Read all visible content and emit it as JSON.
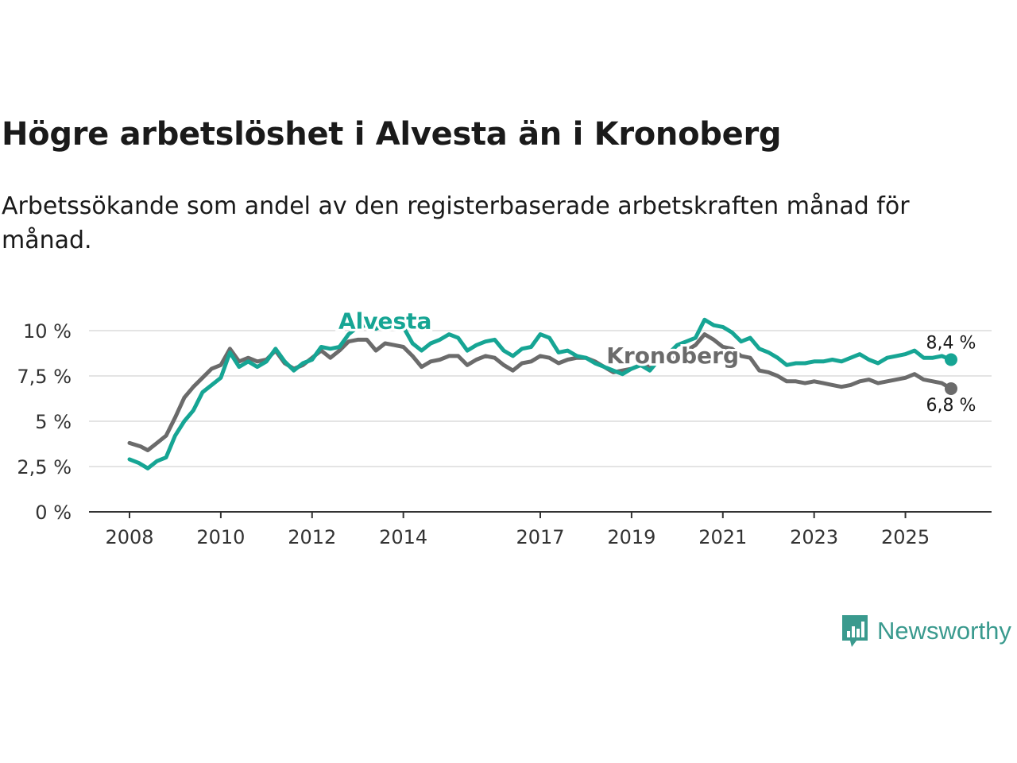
{
  "title": "Högre arbetslöshet i Alvesta än i Kronoberg",
  "subtitle": "Arbetssökande som andel av den registerbaserade arbetskraften månad för månad.",
  "logo": {
    "text": "Newsworthy",
    "icon": "newsworthy-bar-chart-icon",
    "color": "#3a9a8e"
  },
  "chart_data": {
    "type": "line",
    "title": "Högre arbetslöshet i Alvesta än i Kronoberg",
    "xlabel": "",
    "ylabel": "",
    "xlim": [
      2008,
      2026.2
    ],
    "ylim": [
      0,
      10
    ],
    "y_ticks": [
      {
        "value": 0,
        "label": "0 %"
      },
      {
        "value": 2.5,
        "label": "2,5 %"
      },
      {
        "value": 5,
        "label": "5 %"
      },
      {
        "value": 7.5,
        "label": "7,5 %"
      },
      {
        "value": 10,
        "label": "10 %"
      }
    ],
    "x_ticks": [
      {
        "value": 2008,
        "label": "2008"
      },
      {
        "value": 2010,
        "label": "2010"
      },
      {
        "value": 2012,
        "label": "2012"
      },
      {
        "value": 2014,
        "label": "2014"
      },
      {
        "value": 2017,
        "label": "2017"
      },
      {
        "value": 2019,
        "label": "2019"
      },
      {
        "value": 2021,
        "label": "2021"
      },
      {
        "value": 2023,
        "label": "2023"
      },
      {
        "value": 2025,
        "label": "2025"
      }
    ],
    "grid": true,
    "series": [
      {
        "name": "Kronoberg",
        "color": "#6b6b6b",
        "end_label": "6,8 %",
        "points": [
          [
            2008.0,
            3.8
          ],
          [
            2008.25,
            3.6
          ],
          [
            2008.4,
            3.4
          ],
          [
            2008.6,
            3.8
          ],
          [
            2008.8,
            4.2
          ],
          [
            2009.0,
            5.2
          ],
          [
            2009.2,
            6.3
          ],
          [
            2009.4,
            6.9
          ],
          [
            2009.6,
            7.4
          ],
          [
            2009.8,
            7.9
          ],
          [
            2010.0,
            8.1
          ],
          [
            2010.2,
            9.0
          ],
          [
            2010.4,
            8.3
          ],
          [
            2010.6,
            8.5
          ],
          [
            2010.8,
            8.3
          ],
          [
            2011.0,
            8.4
          ],
          [
            2011.2,
            8.9
          ],
          [
            2011.4,
            8.2
          ],
          [
            2011.6,
            7.9
          ],
          [
            2011.8,
            8.1
          ],
          [
            2012.0,
            8.5
          ],
          [
            2012.2,
            8.9
          ],
          [
            2012.4,
            8.5
          ],
          [
            2012.6,
            8.9
          ],
          [
            2012.8,
            9.4
          ],
          [
            2013.0,
            9.5
          ],
          [
            2013.2,
            9.5
          ],
          [
            2013.4,
            8.9
          ],
          [
            2013.6,
            9.3
          ],
          [
            2013.8,
            9.2
          ],
          [
            2014.0,
            9.1
          ],
          [
            2014.2,
            8.6
          ],
          [
            2014.4,
            8.0
          ],
          [
            2014.6,
            8.3
          ],
          [
            2014.8,
            8.4
          ],
          [
            2015.0,
            8.6
          ],
          [
            2015.2,
            8.6
          ],
          [
            2015.4,
            8.1
          ],
          [
            2015.6,
            8.4
          ],
          [
            2015.8,
            8.6
          ],
          [
            2016.0,
            8.5
          ],
          [
            2016.2,
            8.1
          ],
          [
            2016.4,
            7.8
          ],
          [
            2016.6,
            8.2
          ],
          [
            2016.8,
            8.3
          ],
          [
            2017.0,
            8.6
          ],
          [
            2017.2,
            8.5
          ],
          [
            2017.4,
            8.2
          ],
          [
            2017.6,
            8.4
          ],
          [
            2017.8,
            8.5
          ],
          [
            2018.0,
            8.5
          ],
          [
            2018.2,
            8.3
          ],
          [
            2018.4,
            8.0
          ],
          [
            2018.6,
            7.7
          ],
          [
            2018.8,
            7.8
          ],
          [
            2019.0,
            7.9
          ],
          [
            2019.2,
            8.1
          ],
          [
            2019.4,
            8.0
          ],
          [
            2019.6,
            8.3
          ],
          [
            2019.8,
            8.5
          ],
          [
            2020.0,
            8.6
          ],
          [
            2020.2,
            8.9
          ],
          [
            2020.4,
            9.2
          ],
          [
            2020.6,
            9.8
          ],
          [
            2020.8,
            9.5
          ],
          [
            2021.0,
            9.1
          ],
          [
            2021.2,
            9.0
          ],
          [
            2021.4,
            8.6
          ],
          [
            2021.6,
            8.5
          ],
          [
            2021.8,
            7.8
          ],
          [
            2022.0,
            7.7
          ],
          [
            2022.2,
            7.5
          ],
          [
            2022.4,
            7.2
          ],
          [
            2022.6,
            7.2
          ],
          [
            2022.8,
            7.1
          ],
          [
            2023.0,
            7.2
          ],
          [
            2023.2,
            7.1
          ],
          [
            2023.4,
            7.0
          ],
          [
            2023.6,
            6.9
          ],
          [
            2023.8,
            7.0
          ],
          [
            2024.0,
            7.2
          ],
          [
            2024.2,
            7.3
          ],
          [
            2024.4,
            7.1
          ],
          [
            2024.6,
            7.2
          ],
          [
            2024.8,
            7.3
          ],
          [
            2025.0,
            7.4
          ],
          [
            2025.2,
            7.6
          ],
          [
            2025.4,
            7.3
          ],
          [
            2025.6,
            7.2
          ],
          [
            2025.8,
            7.1
          ],
          [
            2026.0,
            6.8
          ]
        ]
      },
      {
        "name": "Alvesta",
        "color": "#16a594",
        "end_label": "8,4 %",
        "points": [
          [
            2008.0,
            2.9
          ],
          [
            2008.2,
            2.7
          ],
          [
            2008.4,
            2.4
          ],
          [
            2008.6,
            2.8
          ],
          [
            2008.8,
            3.0
          ],
          [
            2009.0,
            4.2
          ],
          [
            2009.2,
            5.0
          ],
          [
            2009.4,
            5.6
          ],
          [
            2009.6,
            6.6
          ],
          [
            2009.8,
            7.0
          ],
          [
            2010.0,
            7.4
          ],
          [
            2010.2,
            8.8
          ],
          [
            2010.4,
            8.0
          ],
          [
            2010.6,
            8.3
          ],
          [
            2010.8,
            8.0
          ],
          [
            2011.0,
            8.3
          ],
          [
            2011.2,
            9.0
          ],
          [
            2011.4,
            8.3
          ],
          [
            2011.6,
            7.8
          ],
          [
            2011.8,
            8.2
          ],
          [
            2012.0,
            8.4
          ],
          [
            2012.2,
            9.1
          ],
          [
            2012.4,
            9.0
          ],
          [
            2012.6,
            9.1
          ],
          [
            2012.8,
            9.8
          ],
          [
            2013.0,
            10.2
          ],
          [
            2013.2,
            10.3
          ],
          [
            2013.4,
            10.1
          ],
          [
            2013.6,
            10.4
          ],
          [
            2013.8,
            10.3
          ],
          [
            2014.0,
            10.2
          ],
          [
            2014.2,
            9.3
          ],
          [
            2014.4,
            8.9
          ],
          [
            2014.6,
            9.3
          ],
          [
            2014.8,
            9.5
          ],
          [
            2015.0,
            9.8
          ],
          [
            2015.2,
            9.6
          ],
          [
            2015.4,
            8.9
          ],
          [
            2015.6,
            9.2
          ],
          [
            2015.8,
            9.4
          ],
          [
            2016.0,
            9.5
          ],
          [
            2016.2,
            8.9
          ],
          [
            2016.4,
            8.6
          ],
          [
            2016.6,
            9.0
          ],
          [
            2016.8,
            9.1
          ],
          [
            2017.0,
            9.8
          ],
          [
            2017.2,
            9.6
          ],
          [
            2017.4,
            8.8
          ],
          [
            2017.6,
            8.9
          ],
          [
            2017.8,
            8.6
          ],
          [
            2018.0,
            8.5
          ],
          [
            2018.2,
            8.2
          ],
          [
            2018.4,
            8.0
          ],
          [
            2018.6,
            7.8
          ],
          [
            2018.8,
            7.6
          ],
          [
            2019.0,
            7.9
          ],
          [
            2019.2,
            8.1
          ],
          [
            2019.4,
            7.8
          ],
          [
            2019.6,
            8.4
          ],
          [
            2019.8,
            8.7
          ],
          [
            2020.0,
            9.2
          ],
          [
            2020.2,
            9.4
          ],
          [
            2020.4,
            9.6
          ],
          [
            2020.6,
            10.6
          ],
          [
            2020.8,
            10.3
          ],
          [
            2021.0,
            10.2
          ],
          [
            2021.2,
            9.9
          ],
          [
            2021.4,
            9.4
          ],
          [
            2021.6,
            9.6
          ],
          [
            2021.8,
            9.0
          ],
          [
            2022.0,
            8.8
          ],
          [
            2022.2,
            8.5
          ],
          [
            2022.4,
            8.1
          ],
          [
            2022.6,
            8.2
          ],
          [
            2022.8,
            8.2
          ],
          [
            2023.0,
            8.3
          ],
          [
            2023.2,
            8.3
          ],
          [
            2023.4,
            8.4
          ],
          [
            2023.6,
            8.3
          ],
          [
            2023.8,
            8.5
          ],
          [
            2024.0,
            8.7
          ],
          [
            2024.2,
            8.4
          ],
          [
            2024.4,
            8.2
          ],
          [
            2024.6,
            8.5
          ],
          [
            2024.8,
            8.6
          ],
          [
            2025.0,
            8.7
          ],
          [
            2025.2,
            8.9
          ],
          [
            2025.4,
            8.5
          ],
          [
            2025.6,
            8.5
          ],
          [
            2025.8,
            8.6
          ],
          [
            2026.0,
            8.4
          ]
        ]
      }
    ],
    "annotations": [
      {
        "text": "Alvesta",
        "series": "Alvesta",
        "x": 2013.6,
        "y": 10.5
      },
      {
        "text": "Kronoberg",
        "series": "Kronoberg",
        "x": 2019.9,
        "y": 8.6
      }
    ]
  }
}
